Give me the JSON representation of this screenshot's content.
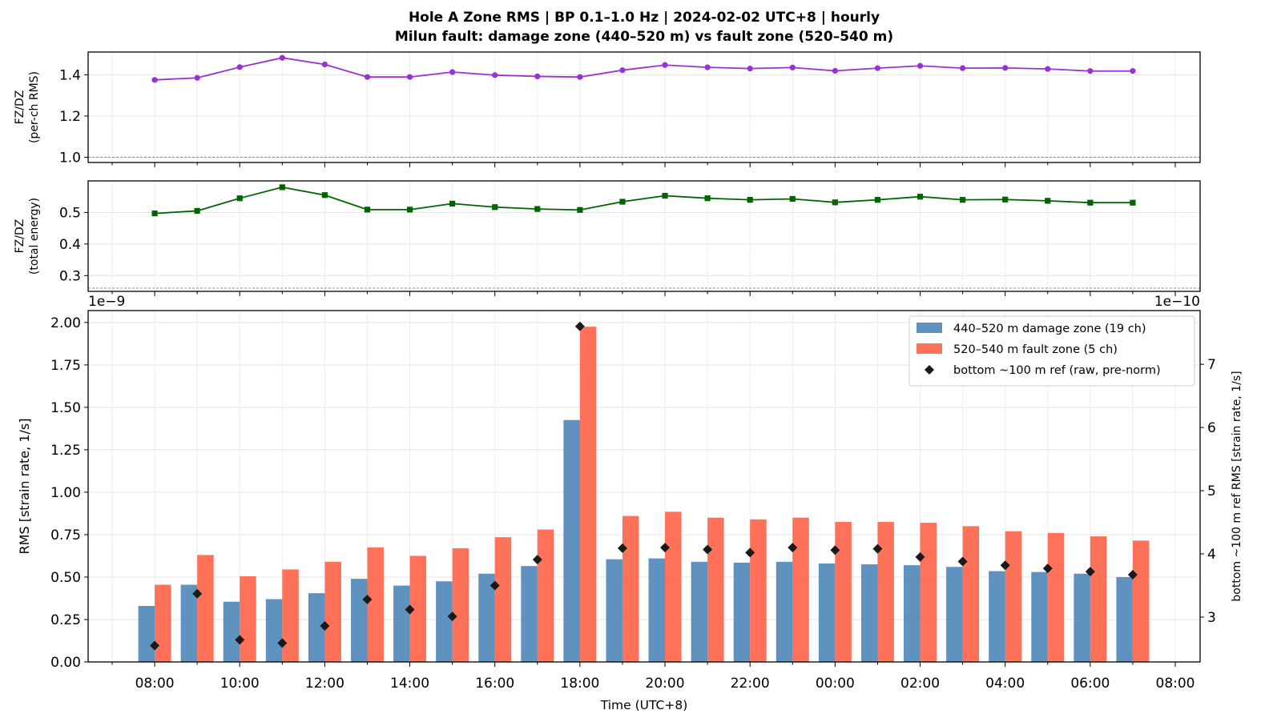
{
  "header": {
    "title_line1": "Hole A Zone RMS  |  BP 0.1–1.0 Hz  |  2024-02-02 UTC+8  |  hourly",
    "title_line2": "Milun fault: damage zone (440–520 m) vs fault zone (520–540 m)"
  },
  "chart_data": [
    {
      "type": "line",
      "ylabel": [
        "FZ/DZ",
        "(per-ch RMS)"
      ],
      "ylim": [
        0.975,
        1.51
      ],
      "yticks": [
        1.0,
        1.2,
        1.4
      ],
      "ytick_labels": [
        "1.0",
        "1.2",
        "1.4"
      ],
      "reference_line": 1.0,
      "grid": true,
      "color": "#9b30d9",
      "marker": "circle",
      "x": [
        "08:00",
        "09:00",
        "10:00",
        "11:00",
        "12:00",
        "13:00",
        "14:00",
        "15:00",
        "16:00",
        "17:00",
        "18:00",
        "19:00",
        "20:00",
        "21:00",
        "22:00",
        "23:00",
        "00:00",
        "01:00",
        "02:00",
        "03:00",
        "04:00",
        "05:00",
        "06:00",
        "07:00"
      ],
      "values": [
        1.375,
        1.385,
        1.437,
        1.482,
        1.45,
        1.389,
        1.389,
        1.413,
        1.398,
        1.392,
        1.389,
        1.422,
        1.447,
        1.436,
        1.43,
        1.435,
        1.419,
        1.432,
        1.443,
        1.432,
        1.433,
        1.428,
        1.418,
        1.418
      ]
    },
    {
      "type": "line",
      "ylabel": [
        "FZ/DZ",
        "(total energy)"
      ],
      "ylim": [
        0.25,
        0.6
      ],
      "yticks": [
        0.3,
        0.4,
        0.5
      ],
      "ytick_labels": [
        "0.3",
        "0.4",
        "0.5"
      ],
      "reference_line": 0.26,
      "grid": true,
      "color": "#006400",
      "marker": "square",
      "x": [
        "08:00",
        "09:00",
        "10:00",
        "11:00",
        "12:00",
        "13:00",
        "14:00",
        "15:00",
        "16:00",
        "17:00",
        "18:00",
        "19:00",
        "20:00",
        "21:00",
        "22:00",
        "23:00",
        "00:00",
        "01:00",
        "02:00",
        "03:00",
        "04:00",
        "05:00",
        "06:00",
        "07:00"
      ],
      "values": [
        0.497,
        0.505,
        0.545,
        0.58,
        0.555,
        0.509,
        0.509,
        0.528,
        0.517,
        0.511,
        0.508,
        0.534,
        0.553,
        0.545,
        0.54,
        0.543,
        0.532,
        0.54,
        0.55,
        0.54,
        0.541,
        0.537,
        0.531,
        0.531
      ]
    },
    {
      "type": "bar",
      "xlabel": "Time (UTC+8)",
      "ylabel": "RMS  [strain rate, 1/s]",
      "y_offset_label": "1e−9",
      "ylim": [
        0,
        2.07
      ],
      "yticks": [
        0,
        0.25,
        0.5,
        0.75,
        1.0,
        1.25,
        1.5,
        1.75,
        2.0
      ],
      "ytick_labels": [
        "0.00",
        "0.25",
        "0.50",
        "0.75",
        "1.00",
        "1.25",
        "1.50",
        "1.75",
        "2.00"
      ],
      "y2label": "bottom ~100 m ref RMS  [strain rate, 1/s]",
      "y2_offset_label": "1e−10",
      "y2lim": [
        2.29,
        7.85
      ],
      "y2ticks": [
        3,
        4,
        5,
        6,
        7
      ],
      "y2tick_labels": [
        "3",
        "4",
        "5",
        "6",
        "7"
      ],
      "xtick_labels": [
        "08:00",
        "10:00",
        "12:00",
        "14:00",
        "16:00",
        "18:00",
        "20:00",
        "22:00",
        "00:00",
        "02:00",
        "04:00",
        "06:00",
        "08:00"
      ],
      "grid": true,
      "legend_position": "upper right",
      "x": [
        "08:00",
        "09:00",
        "10:00",
        "11:00",
        "12:00",
        "13:00",
        "14:00",
        "15:00",
        "16:00",
        "17:00",
        "18:00",
        "19:00",
        "20:00",
        "21:00",
        "22:00",
        "23:00",
        "00:00",
        "01:00",
        "02:00",
        "03:00",
        "04:00",
        "05:00",
        "06:00",
        "07:00"
      ],
      "series": [
        {
          "name": "440–520 m  damage zone (19 ch)",
          "color": "#4f86b9",
          "kind": "bar",
          "values": [
            0.33,
            0.455,
            0.355,
            0.37,
            0.405,
            0.49,
            0.45,
            0.475,
            0.52,
            0.565,
            1.425,
            0.605,
            0.61,
            0.59,
            0.585,
            0.59,
            0.58,
            0.575,
            0.57,
            0.56,
            0.535,
            0.53,
            0.52,
            0.5
          ]
        },
        {
          "name": "520–540 m  fault zone (5 ch)",
          "color": "#ff6347",
          "kind": "bar",
          "values": [
            0.455,
            0.63,
            0.505,
            0.545,
            0.59,
            0.675,
            0.625,
            0.67,
            0.735,
            0.78,
            1.975,
            0.86,
            0.885,
            0.85,
            0.84,
            0.85,
            0.825,
            0.825,
            0.82,
            0.8,
            0.77,
            0.76,
            0.74,
            0.715
          ]
        },
        {
          "name": "bottom ~100 m ref (raw, pre-norm)",
          "color": "#1a1a1a",
          "kind": "diamond",
          "axis": "right",
          "values": [
            2.55,
            3.37,
            2.64,
            2.59,
            2.86,
            3.28,
            3.12,
            3.01,
            3.5,
            3.91,
            7.6,
            4.09,
            4.1,
            4.07,
            4.02,
            4.1,
            4.06,
            4.08,
            3.95,
            3.88,
            3.82,
            3.77,
            3.72,
            3.67
          ]
        }
      ]
    }
  ]
}
